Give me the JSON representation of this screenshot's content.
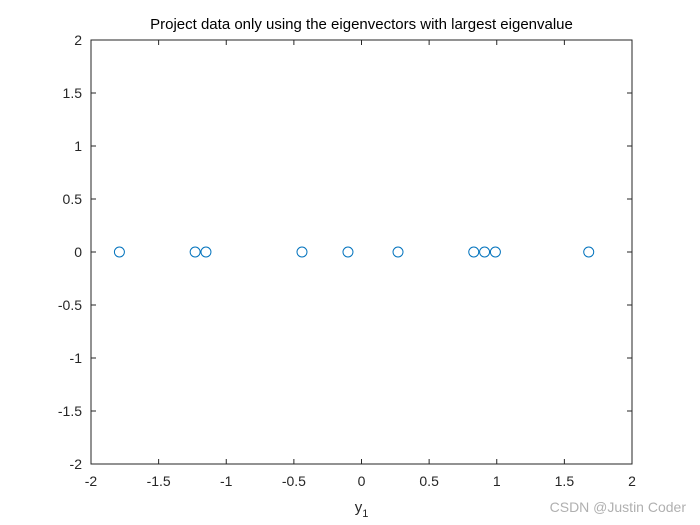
{
  "chart_data": {
    "type": "scatter",
    "title": "Project data only using the eigenvectors with largest eigenvalue",
    "xlabel": "y",
    "xlabel_subscript": "1",
    "ylabel": "",
    "xlim": [
      -2,
      2
    ],
    "ylim": [
      -2,
      2
    ],
    "xticks": [
      -2,
      -1.5,
      -1,
      -0.5,
      0,
      0.5,
      1,
      1.5,
      2
    ],
    "yticks": [
      -2,
      -1.5,
      -1,
      -0.5,
      0,
      0.5,
      1,
      1.5,
      2
    ],
    "grid": false,
    "marker": "open-circle",
    "series": [
      {
        "color": "#0072bd",
        "x": [
          -1.79,
          -1.23,
          -1.15,
          -0.44,
          -0.1,
          0.27,
          0.83,
          0.91,
          0.99,
          1.68
        ],
        "y": [
          0,
          0,
          0,
          0,
          0,
          0,
          0,
          0,
          0,
          0
        ]
      }
    ]
  },
  "watermark": "CSDN @Justin Coder"
}
